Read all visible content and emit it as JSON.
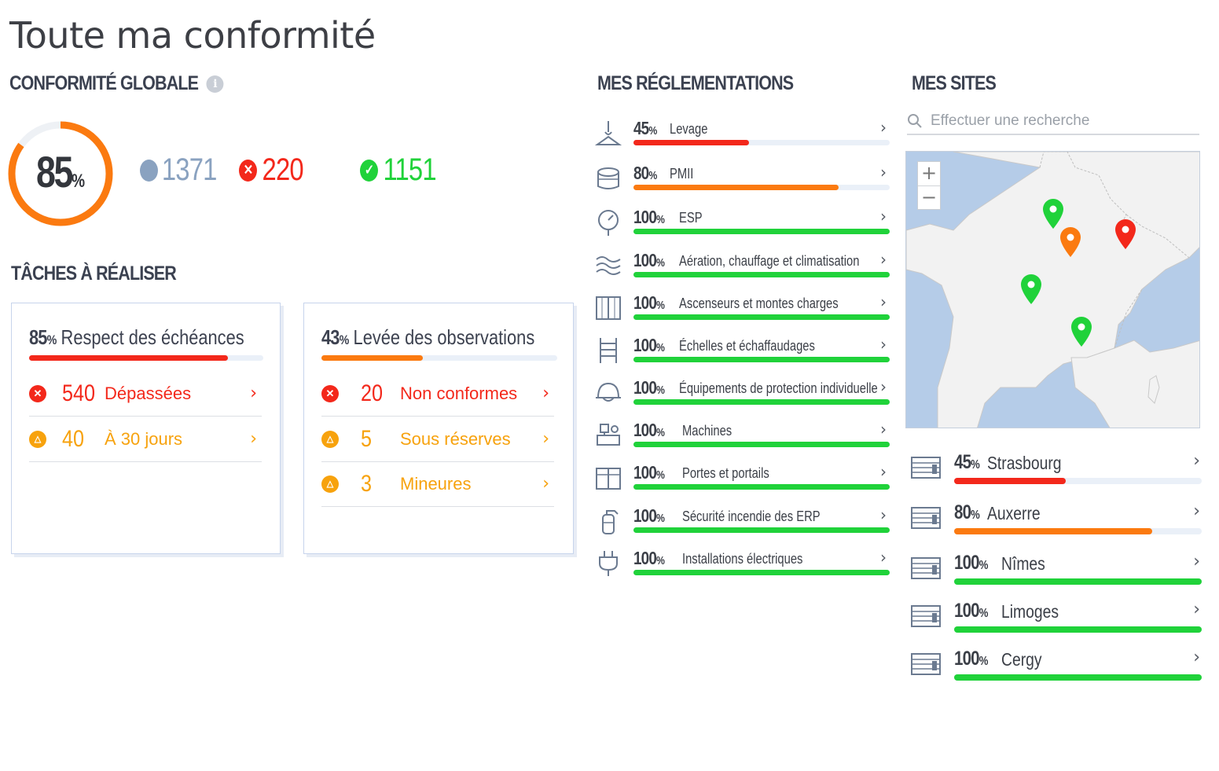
{
  "title": "Toute ma conformité",
  "colors": {
    "red": "#f3281b",
    "orange": "#fb7a10",
    "green": "#20d23a",
    "grey": "#8aa2c0",
    "amber": "#f7a20d"
  },
  "global": {
    "heading": "CONFORMITÉ GLOBALE",
    "info_icon": "info-icon",
    "percent": 85,
    "percent_label": "85",
    "percent_sign": "%",
    "total": "1371",
    "non_compliant": "220",
    "compliant": "1151"
  },
  "tasks": {
    "heading": "TÂCHES À RÉALISER",
    "cards": [
      {
        "pct": "85",
        "sign": "%",
        "title": "Respect des échéances",
        "progress": 85,
        "rows": [
          {
            "icon": "x-circle-icon",
            "count": "540",
            "label": "Dépassées"
          },
          {
            "icon": "warning-triangle-icon",
            "count": "40",
            "label": "À 30 jours"
          }
        ]
      },
      {
        "pct": "43",
        "sign": "%",
        "title": "Levée des observations",
        "progress": 43,
        "rows": [
          {
            "icon": "x-circle-icon",
            "count": "20",
            "label": "Non conformes"
          },
          {
            "icon": "warning-triangle-icon",
            "count": "5",
            "label": "Sous réserves"
          },
          {
            "icon": "warning-triangle-icon",
            "count": "3",
            "label": "Mineures"
          }
        ]
      }
    ]
  },
  "regulations": {
    "heading": "MES RÉGLEMENTATIONS",
    "items": [
      {
        "pct": "45",
        "sign": "%",
        "name": "Levage",
        "progress": 45,
        "icon": "lifting-hook-icon"
      },
      {
        "pct": "80",
        "sign": "%",
        "name": "PMII",
        "progress": 80,
        "icon": "tank-icon"
      },
      {
        "pct": "100",
        "sign": "%",
        "name": "ESP",
        "progress": 100,
        "icon": "pressure-gauge-icon"
      },
      {
        "pct": "100",
        "sign": "%",
        "name": "Aération, chauffage et climatisation",
        "progress": 100,
        "icon": "air-waves-icon"
      },
      {
        "pct": "100",
        "sign": "%",
        "name": "Ascenseurs et montes charges",
        "progress": 100,
        "icon": "elevator-icon"
      },
      {
        "pct": "100",
        "sign": "%",
        "name": "Échelles et échaffaudages",
        "progress": 100,
        "icon": "ladder-icon"
      },
      {
        "pct": "100",
        "sign": "%",
        "name": "Équipements de protection individuelle",
        "progress": 100,
        "icon": "helmet-icon"
      },
      {
        "pct": "100",
        "sign": "%",
        "name": "Machines",
        "progress": 100,
        "icon": "machine-icon"
      },
      {
        "pct": "100",
        "sign": "%",
        "name": "Portes et portails",
        "progress": 100,
        "icon": "door-gate-icon"
      },
      {
        "pct": "100",
        "sign": "%",
        "name": "Sécurité incendie des ERP",
        "progress": 100,
        "icon": "fire-extinguisher-icon"
      },
      {
        "pct": "100",
        "sign": "%",
        "name": "Installations électriques",
        "progress": 100,
        "icon": "electric-plug-icon"
      }
    ]
  },
  "sites": {
    "heading": "MES SITES",
    "search_placeholder": "Effectuer une recherche",
    "zoom_in": "+",
    "zoom_out": "−",
    "items": [
      {
        "pct": "45",
        "sign": "%",
        "name": "Strasbourg",
        "progress": 45
      },
      {
        "pct": "80",
        "sign": "%",
        "name": "Auxerre",
        "progress": 80
      },
      {
        "pct": "100",
        "sign": "%",
        "name": "Nîmes",
        "progress": 100
      },
      {
        "pct": "100",
        "sign": "%",
        "name": "Limoges",
        "progress": 100
      },
      {
        "pct": "100",
        "sign": "%",
        "name": "Cergy",
        "progress": 100
      }
    ]
  },
  "chevron": "›"
}
